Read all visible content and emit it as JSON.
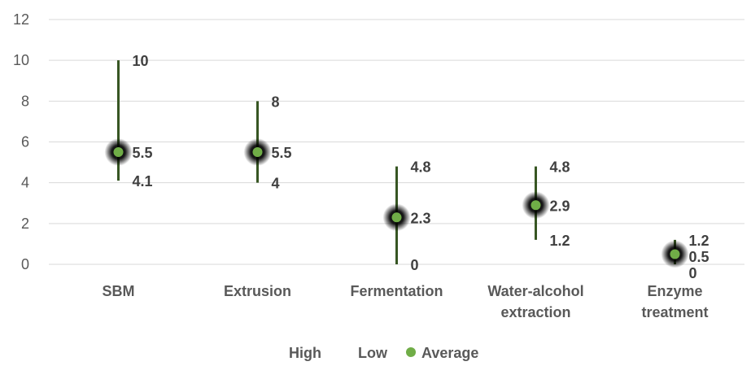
{
  "chart_data": {
    "type": "stock-high-low",
    "categories": [
      [
        "SBM"
      ],
      [
        "Extrusion"
      ],
      [
        "Fermentation"
      ],
      [
        "Water-alcohol",
        "extraction"
      ],
      [
        "Enzyme",
        "treatment"
      ]
    ],
    "series": [
      {
        "name": "High",
        "values": [
          10,
          8,
          4.8,
          4.8,
          1.2
        ]
      },
      {
        "name": "Low",
        "values": [
          4.1,
          4,
          0,
          1.2,
          0
        ]
      },
      {
        "name": "Average",
        "values": [
          5.5,
          5.5,
          2.3,
          2.9,
          0.5
        ]
      }
    ],
    "ylim": [
      0,
      12
    ],
    "yticks": [
      0,
      2,
      4,
      6,
      8,
      10,
      12
    ],
    "grid": true,
    "legend": "bottom",
    "colors": {
      "range_line": "#375623",
      "average_marker": "#70AD47",
      "grid": "#D9D9D9",
      "text": "#595959"
    }
  }
}
